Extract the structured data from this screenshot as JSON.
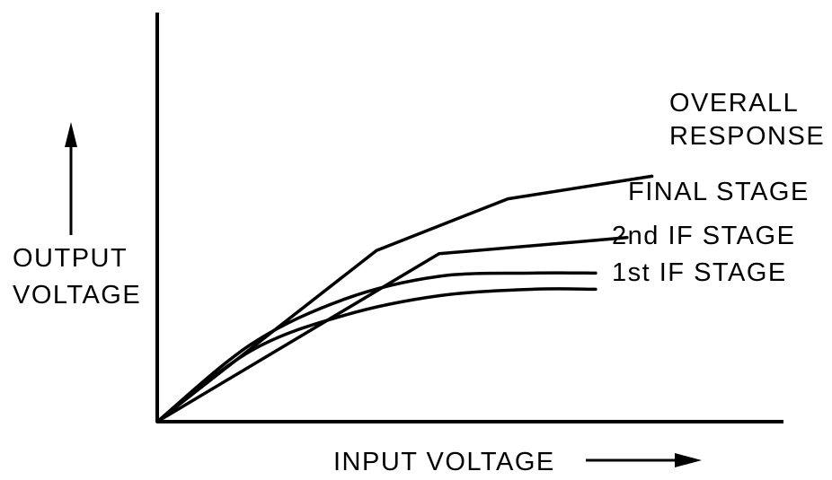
{
  "chart_data": {
    "type": "line",
    "title": "",
    "xlabel": "INPUT VOLTAGE",
    "ylabel_lines": [
      "OUTPUT",
      "VOLTAGE"
    ],
    "xlim": [
      0,
      10
    ],
    "ylim": [
      0,
      10
    ],
    "grid": false,
    "legend": "none",
    "series": [
      {
        "name_lines": [
          "OVERALL",
          "RESPONSE"
        ],
        "x": [
          0,
          3.5,
          5.6,
          7.9
        ],
        "y": [
          0,
          5.3,
          6.9,
          7.6
        ]
      },
      {
        "name_lines": [
          "FINAL STAGE"
        ],
        "x": [
          0,
          4.5,
          7.5
        ],
        "y": [
          0,
          5.2,
          5.7
        ]
      },
      {
        "name_lines": [
          "2nd IF STAGE"
        ],
        "x": [
          0,
          1.5,
          3.0,
          4.5,
          6.0,
          7.0
        ],
        "y": [
          0,
          2.4,
          3.8,
          4.5,
          4.6,
          4.6
        ]
      },
      {
        "name_lines": [
          "1st IF STAGE"
        ],
        "x": [
          0,
          1.5,
          3.0,
          4.5,
          6.0,
          7.0
        ],
        "y": [
          0,
          2.2,
          3.3,
          3.9,
          4.1,
          4.1
        ]
      }
    ],
    "colors": {
      "ink": "#000000",
      "background": "#ffffff"
    }
  }
}
